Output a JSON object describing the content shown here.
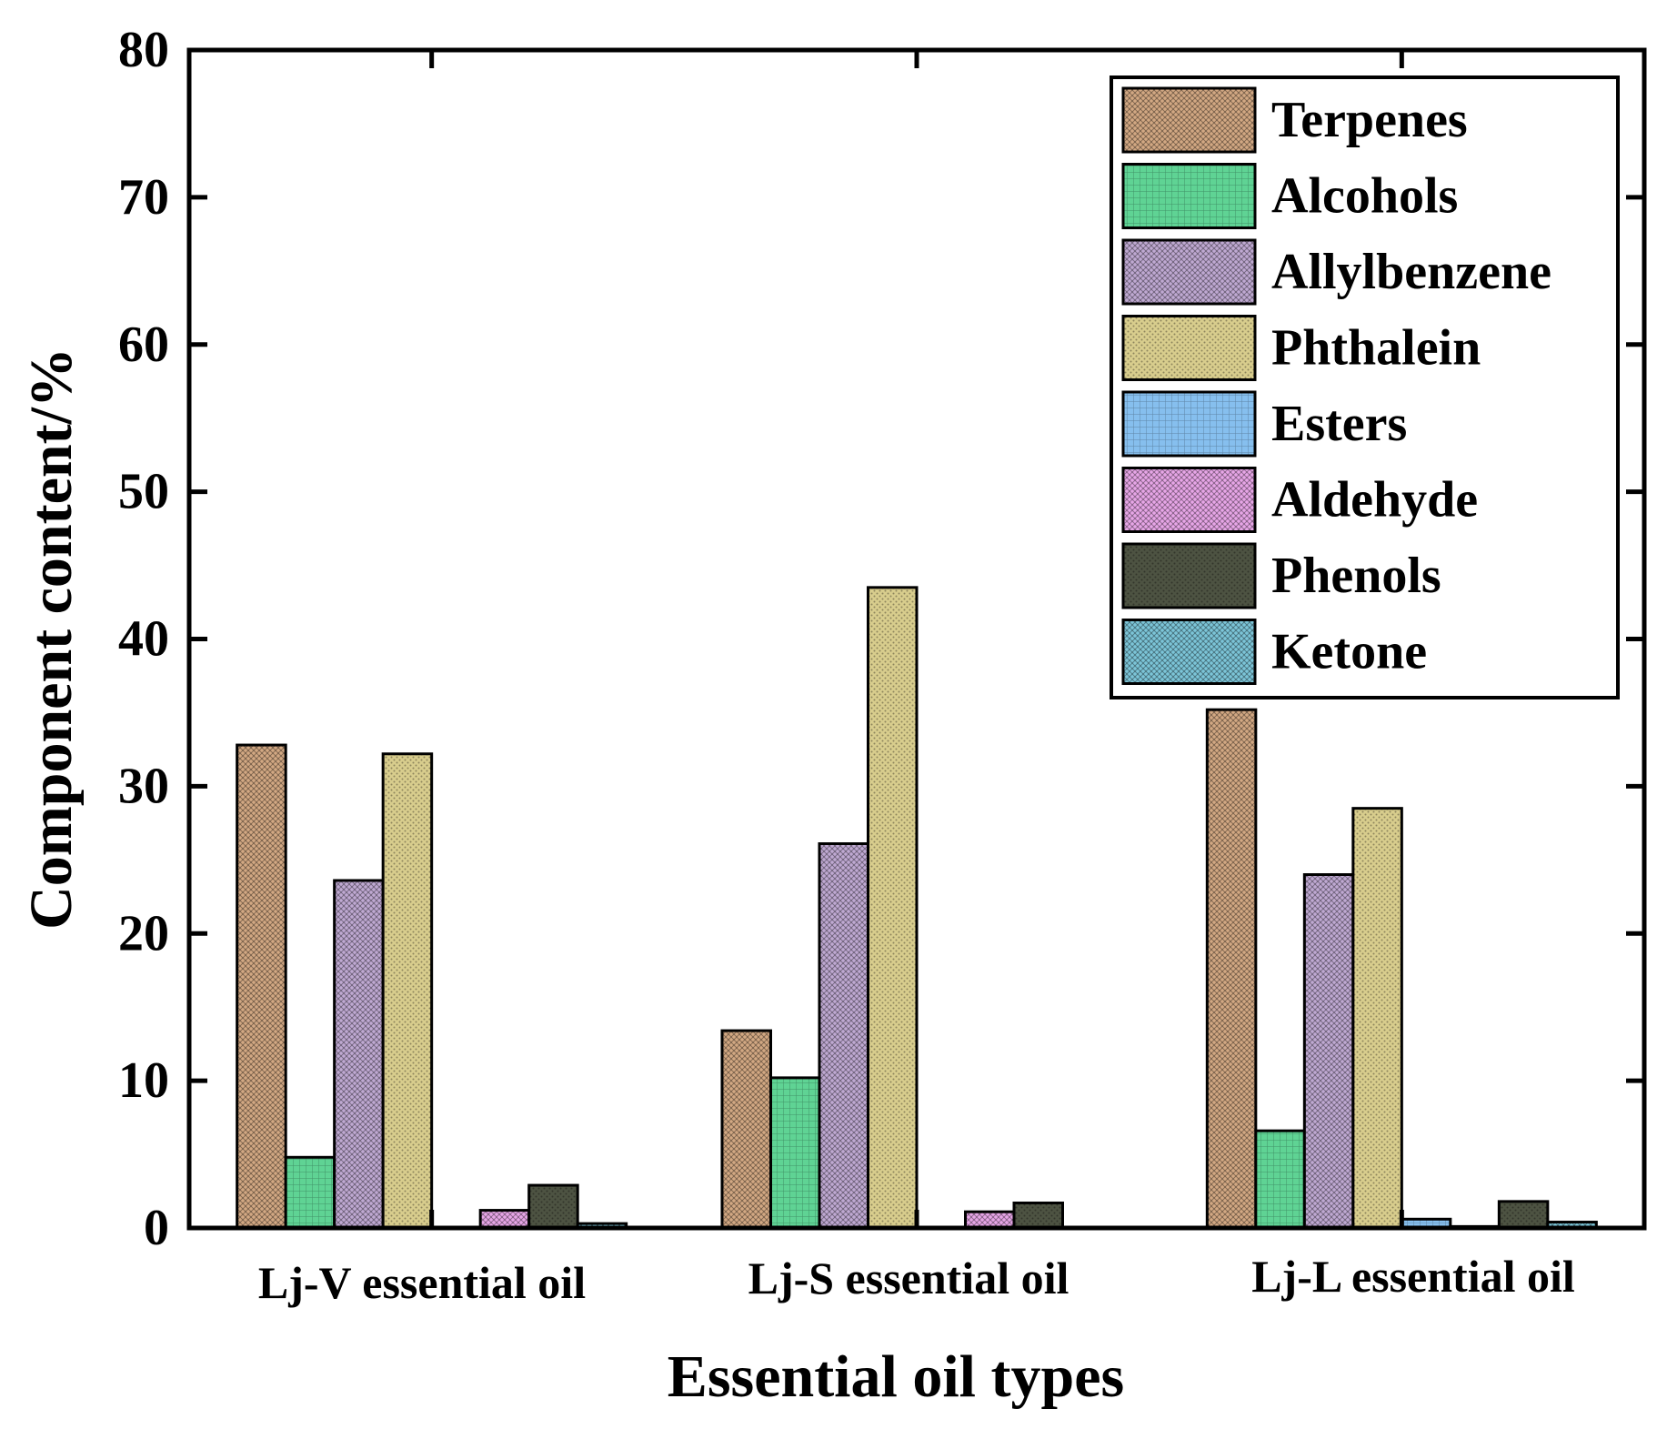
{
  "chart_data": {
    "type": "bar",
    "title": "",
    "xlabel": "Essential oil types",
    "ylabel": "Component content/%",
    "ylim": [
      0,
      80
    ],
    "yticks": [
      0,
      10,
      20,
      30,
      40,
      50,
      60,
      70,
      80
    ],
    "categories": [
      "Lj-V essential oil",
      "Lj-S essential oil",
      "Lj-L essential oil"
    ],
    "legend_position": "top-right",
    "series": [
      {
        "name": "Terpenes",
        "color": "#D2A883",
        "pattern": "crosshatch",
        "values": [
          32.8,
          13.4,
          35.2
        ]
      },
      {
        "name": "Alcohols",
        "color": "#5FD394",
        "pattern": "grid",
        "values": [
          4.8,
          10.2,
          6.6
        ]
      },
      {
        "name": "Allylbenzene",
        "color": "#BFA9D2",
        "pattern": "crosshatch",
        "values": [
          23.6,
          26.1,
          24.0
        ]
      },
      {
        "name": "Phthalein",
        "color": "#D8CD8D",
        "pattern": "dots",
        "values": [
          32.2,
          43.5,
          28.5
        ]
      },
      {
        "name": "Esters",
        "color": "#86BFEE",
        "pattern": "grid",
        "values": [
          0.0,
          0.0,
          0.6
        ]
      },
      {
        "name": "Aldehyde",
        "color": "#E7A6E7",
        "pattern": "crosshatch",
        "values": [
          1.2,
          1.1,
          0.1
        ]
      },
      {
        "name": "Phenols",
        "color": "#4D5342",
        "pattern": "dots",
        "values": [
          2.9,
          1.7,
          1.8
        ]
      },
      {
        "name": "Ketone",
        "color": "#7CC5D8",
        "pattern": "crosshatch",
        "values": [
          0.3,
          0.0,
          0.4
        ]
      }
    ]
  }
}
